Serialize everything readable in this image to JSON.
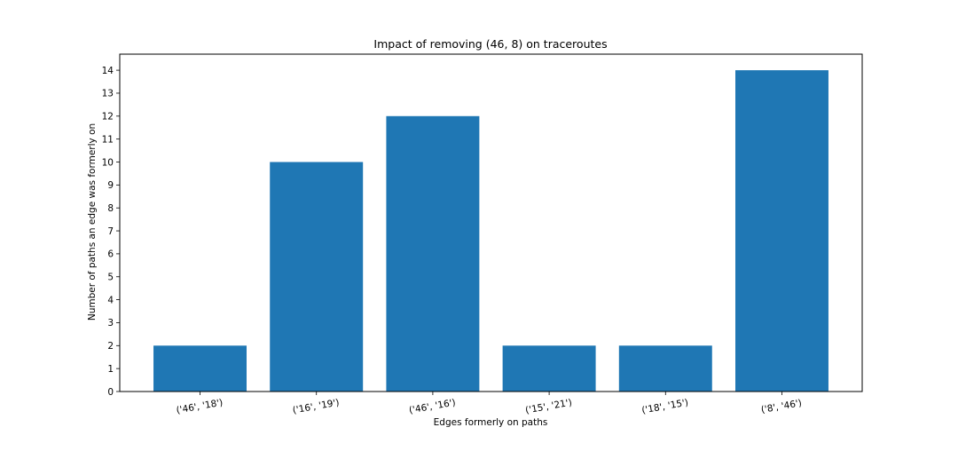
{
  "chart_data": {
    "type": "bar",
    "title": "Impact of removing (46, 8) on traceroutes",
    "xlabel": "Edges formerly on paths",
    "ylabel": "Number of paths an edge was formerly on",
    "categories": [
      "('46', '18')",
      "('16', '19')",
      "('46', '16')",
      "('15', '21')",
      "('18', '15')",
      "('8', '46')"
    ],
    "values": [
      2,
      10,
      12,
      2,
      2,
      14
    ],
    "ylim": [
      0,
      14.7
    ],
    "yticks": [
      0,
      1,
      2,
      3,
      4,
      5,
      6,
      7,
      8,
      9,
      10,
      11,
      12,
      13,
      14
    ],
    "grid": false,
    "bar_color": "#1f77b4"
  }
}
